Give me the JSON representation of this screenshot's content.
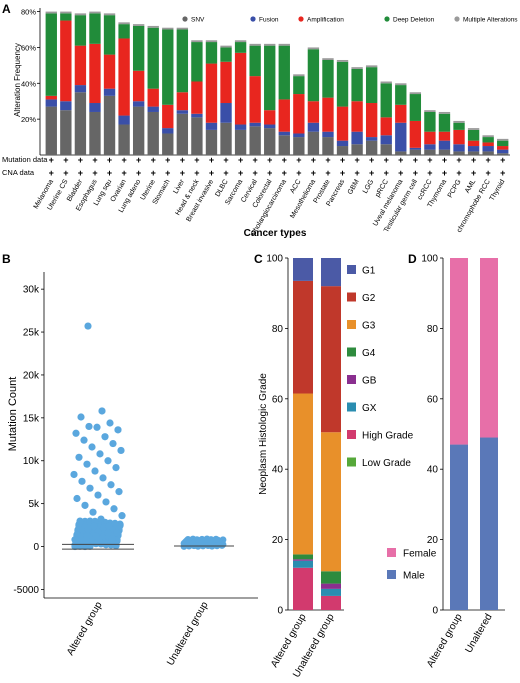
{
  "colors": {
    "snv": "#666666",
    "fusion": "#3a4fa8",
    "amplification": "#e8261f",
    "deep_deletion": "#218c3a",
    "multiple": "#9a9a9a",
    "G1": "#4b5aa6",
    "G2": "#c0382b",
    "G3": "#e8902a",
    "G4": "#2e8b3e",
    "GB": "#8a2f8f",
    "GX": "#2a8db0",
    "HighGrade": "#d23a6e",
    "LowGrade": "#56a83a",
    "female": "#e76fa8",
    "male": "#5a78b8",
    "scatter": "#5aa7de"
  },
  "panels": {
    "a": "A",
    "b": "B",
    "c": "C",
    "d": "D"
  },
  "chart_data": [
    {
      "panel": "A",
      "type": "bar",
      "stacked": true,
      "ylabel": "Alteration Frequency",
      "xlabel": "Cancer types",
      "yticks": [
        "20%",
        "40%",
        "60%",
        "80%"
      ],
      "ylim": [
        0,
        82
      ],
      "row_labels": [
        "Mutation data",
        "CNA data"
      ],
      "row_mark": "+",
      "legend": [
        "SNV",
        "Fusion",
        "Amplification",
        "Deep Deletion",
        "Multiple Alterations"
      ],
      "categories": [
        "Melanoma",
        "Uterine CS",
        "Bladder",
        "Esophagus",
        "Lung squ",
        "Ovarian",
        "Lung adeno",
        "Uterine",
        "Stomach",
        "Liver",
        "Head & neck",
        "Breast invasive",
        "DLBC",
        "Sarcoma",
        "Cervical",
        "Colorectal",
        "Cholangiocarcinoma",
        "ACC",
        "Mesothelioma",
        "Prostate",
        "Pancreas",
        "GBM",
        "LGG",
        "pRCC",
        "Uveal melanoma",
        "Testicular germ cell",
        "ccRCC",
        "Thymoma",
        "PCPG",
        "AML",
        "chromophobe RCC",
        "Thyroid"
      ],
      "series": [
        {
          "name": "SNV",
          "values": [
            27,
            25,
            35,
            24,
            33,
            17,
            27,
            24,
            12,
            23,
            21,
            14,
            18,
            14,
            16,
            15,
            11,
            10,
            13,
            10,
            5,
            6,
            8,
            6,
            2,
            3,
            3,
            3,
            2,
            2,
            2,
            1
          ]
        },
        {
          "name": "Fusion",
          "values": [
            4,
            5,
            4,
            5,
            4,
            5,
            3,
            3,
            3,
            2,
            2,
            4,
            11,
            3,
            2,
            2,
            2,
            2,
            5,
            3,
            3,
            7,
            2,
            5,
            16,
            1,
            3,
            5,
            4,
            3,
            3,
            2
          ]
        },
        {
          "name": "Amplification",
          "values": [
            2,
            45,
            22,
            33,
            19,
            43,
            17,
            10,
            13,
            10,
            18,
            33,
            23,
            40,
            26,
            8,
            18,
            22,
            12,
            19,
            19,
            17,
            19,
            10,
            10,
            15,
            7,
            5,
            8,
            3,
            2,
            2
          ]
        },
        {
          "name": "Deep Deletion",
          "values": [
            46,
            4,
            17,
            17,
            22,
            8,
            25,
            34,
            42,
            35,
            22,
            12,
            8,
            6,
            17,
            36,
            30,
            10,
            29,
            21,
            25,
            18,
            20,
            19,
            11,
            15,
            11,
            10,
            4,
            6,
            3,
            3
          ]
        },
        {
          "name": "Multiple Alterations",
          "values": [
            1,
            1,
            1,
            1,
            1,
            1,
            1,
            1,
            1,
            1,
            1,
            1,
            1,
            1,
            1,
            1,
            1,
            1,
            1,
            1,
            1,
            1,
            1,
            1,
            1,
            1,
            1,
            1,
            1,
            1,
            1,
            1
          ]
        }
      ]
    },
    {
      "panel": "B",
      "type": "scatter",
      "ylabel": "Mutation Count",
      "categories": [
        "Altered group",
        "Unaltered group"
      ],
      "yticks": [
        "-5000",
        "0",
        "5k",
        "10k",
        "15k",
        "20k",
        "25k",
        "30k"
      ],
      "ytick_values": [
        -5000,
        0,
        5000,
        10000,
        15000,
        20000,
        25000,
        30000
      ],
      "ylim": [
        -6000,
        32000
      ],
      "outliers_altered": [
        25700,
        15800,
        15100,
        14400,
        14000,
        13600,
        13900,
        13200,
        12800,
        12400,
        12000,
        11600,
        11200,
        10800,
        10400,
        10000,
        9600,
        9200,
        8800,
        8400,
        8000,
        7600,
        7200,
        6800,
        6400,
        6000,
        5600,
        5200,
        4800,
        4400,
        4000,
        3600,
        3200,
        2800,
        2400,
        2000,
        1600,
        1200,
        800,
        400
      ],
      "altered_max_dense": 3000,
      "unaltered_range": [
        0,
        900
      ],
      "altered_median": 250,
      "unaltered_median": 60
    },
    {
      "panel": "C",
      "type": "bar",
      "stacked": true,
      "ylabel": "Neoplasm Histologic Grade",
      "categories": [
        "Altered group",
        "Unaltered group"
      ],
      "yticks": [
        "0",
        "20",
        "40",
        "60",
        "80",
        "100"
      ],
      "ylim": [
        0,
        100
      ],
      "legend": [
        "G1",
        "G2",
        "G3",
        "G4",
        "GB",
        "GX",
        "High Grade",
        "Low Grade"
      ],
      "series": [
        {
          "name": "High Grade",
          "values": [
            12,
            4
          ]
        },
        {
          "name": "GX",
          "values": [
            2,
            2
          ]
        },
        {
          "name": "GB",
          "values": [
            0.4,
            1.5
          ]
        },
        {
          "name": "G4",
          "values": [
            1.4,
            3.5
          ]
        },
        {
          "name": "Low Grade",
          "values": [
            0,
            0
          ]
        },
        {
          "name": "G3",
          "values": [
            45.7,
            39.5
          ]
        },
        {
          "name": "G2",
          "values": [
            32,
            41.5
          ]
        },
        {
          "name": "G1",
          "values": [
            6.5,
            8
          ]
        }
      ]
    },
    {
      "panel": "D",
      "type": "bar",
      "stacked": true,
      "categories": [
        "Altered group",
        "Unaltered"
      ],
      "yticks": [
        "0",
        "20",
        "40",
        "60",
        "80",
        "100"
      ],
      "ylim": [
        0,
        100
      ],
      "legend": [
        "Female",
        "Male"
      ],
      "series": [
        {
          "name": "Male",
          "values": [
            47,
            49
          ]
        },
        {
          "name": "Female",
          "values": [
            53,
            51
          ]
        }
      ]
    }
  ]
}
